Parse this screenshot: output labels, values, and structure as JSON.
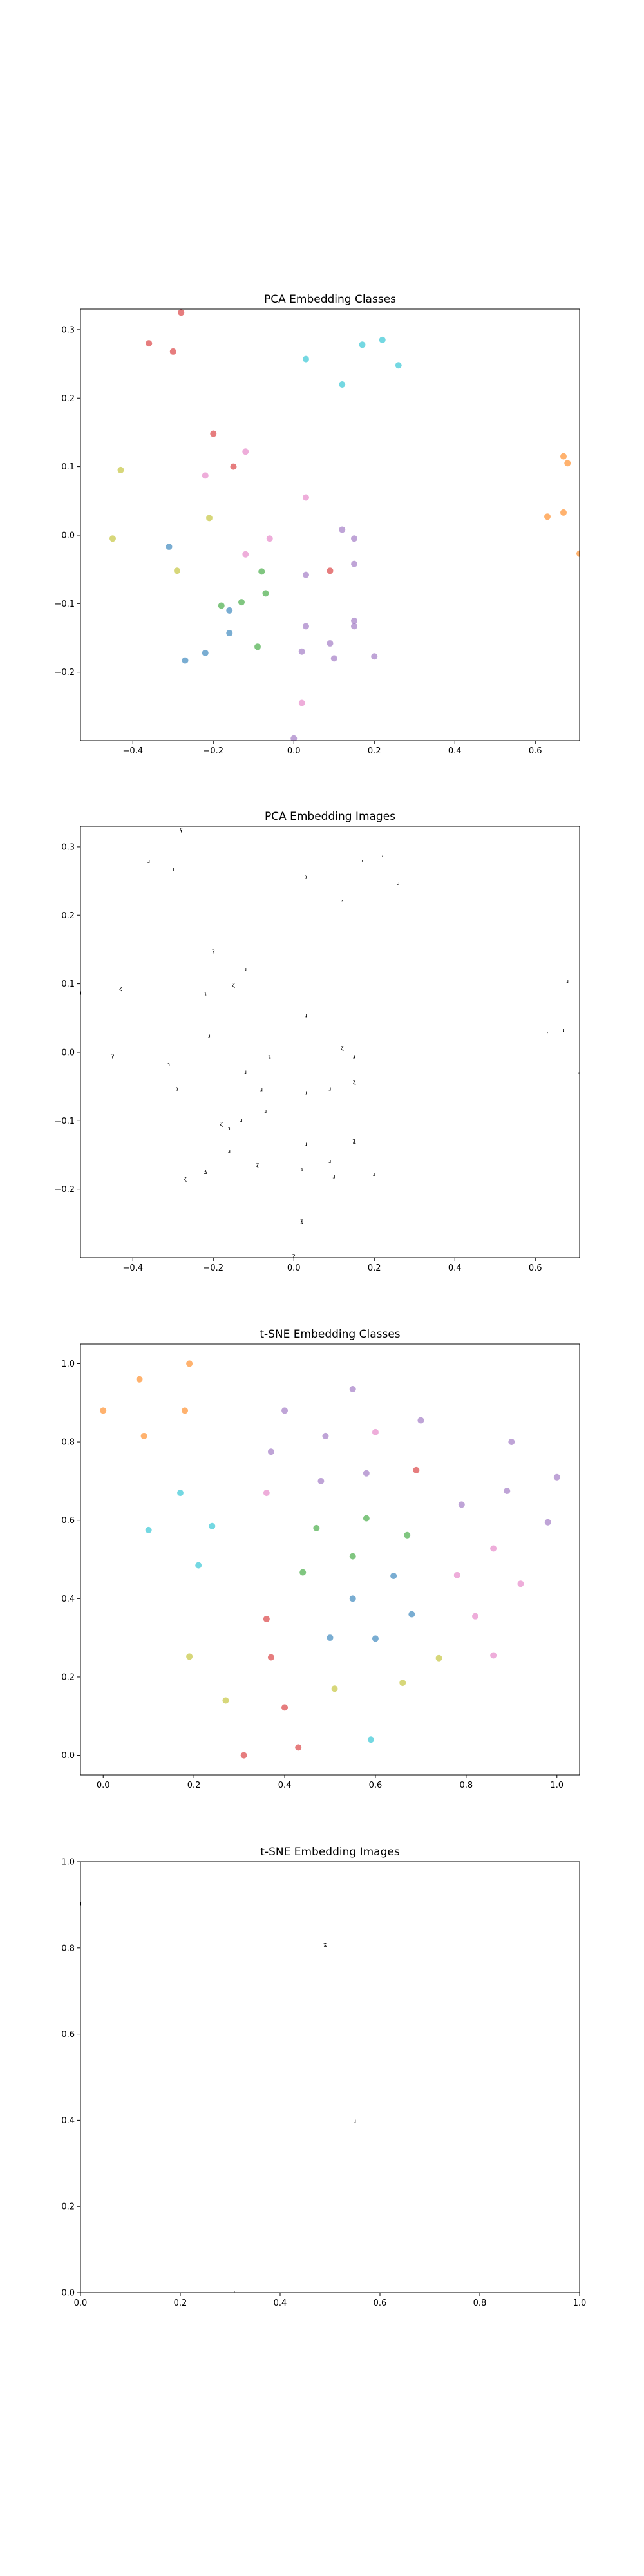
{
  "chart_data": [
    {
      "type": "scatter",
      "title": "PCA Embedding Classes",
      "xlabel": "",
      "ylabel": "",
      "xlim": [
        -0.53,
        0.71
      ],
      "ylim": [
        -0.3,
        0.33
      ],
      "x_ticks": [
        -0.4,
        -0.2,
        0.0,
        0.2,
        0.4,
        0.6
      ],
      "x_tick_labels": [
        "−0.4",
        "−0.2",
        "0.0",
        "0.2",
        "0.4",
        "0.6"
      ],
      "y_ticks": [
        -0.2,
        -0.1,
        0.0,
        0.1,
        0.2,
        0.3
      ],
      "y_tick_labels": [
        "−0.2",
        "−0.1",
        "0.0",
        "0.1",
        "0.2",
        "0.3"
      ],
      "grid": false,
      "marker_alpha": 0.6,
      "points": [
        {
          "x": -0.28,
          "y": 0.325,
          "color": "#d62728"
        },
        {
          "x": -0.36,
          "y": 0.28,
          "color": "#d62728"
        },
        {
          "x": -0.3,
          "y": 0.268,
          "color": "#d62728"
        },
        {
          "x": -0.2,
          "y": 0.148,
          "color": "#d62728"
        },
        {
          "x": -0.15,
          "y": 0.1,
          "color": "#d62728"
        },
        {
          "x": 0.03,
          "y": 0.257,
          "color": "#17becf"
        },
        {
          "x": 0.17,
          "y": 0.278,
          "color": "#17becf"
        },
        {
          "x": 0.22,
          "y": 0.285,
          "color": "#17becf"
        },
        {
          "x": 0.26,
          "y": 0.248,
          "color": "#17becf"
        },
        {
          "x": 0.12,
          "y": 0.22,
          "color": "#17becf"
        },
        {
          "x": 0.67,
          "y": 0.115,
          "color": "#ff7f0e"
        },
        {
          "x": 0.68,
          "y": 0.105,
          "color": "#ff7f0e"
        },
        {
          "x": 0.63,
          "y": 0.027,
          "color": "#ff7f0e"
        },
        {
          "x": 0.67,
          "y": 0.033,
          "color": "#ff7f0e"
        },
        {
          "x": 0.71,
          "y": -0.027,
          "color": "#ff7f0e"
        },
        {
          "x": -0.43,
          "y": 0.095,
          "color": "#bcbd22"
        },
        {
          "x": -0.45,
          "y": -0.005,
          "color": "#bcbd22"
        },
        {
          "x": -0.21,
          "y": 0.025,
          "color": "#bcbd22"
        },
        {
          "x": -0.29,
          "y": -0.052,
          "color": "#bcbd22"
        },
        {
          "x": -0.12,
          "y": 0.122,
          "color": "#e377c2"
        },
        {
          "x": -0.22,
          "y": 0.087,
          "color": "#e377c2"
        },
        {
          "x": 0.03,
          "y": 0.055,
          "color": "#e377c2"
        },
        {
          "x": -0.06,
          "y": -0.005,
          "color": "#e377c2"
        },
        {
          "x": -0.12,
          "y": -0.028,
          "color": "#e377c2"
        },
        {
          "x": 0.12,
          "y": 0.008,
          "color": "#9467bd"
        },
        {
          "x": 0.15,
          "y": -0.005,
          "color": "#9467bd"
        },
        {
          "x": 0.15,
          "y": -0.042,
          "color": "#9467bd"
        },
        {
          "x": 0.03,
          "y": -0.058,
          "color": "#9467bd"
        },
        {
          "x": 0.09,
          "y": -0.052,
          "color": "#d62728"
        },
        {
          "x": -0.31,
          "y": -0.017,
          "color": "#1f77b4"
        },
        {
          "x": -0.16,
          "y": -0.11,
          "color": "#1f77b4"
        },
        {
          "x": -0.16,
          "y": -0.143,
          "color": "#1f77b4"
        },
        {
          "x": -0.22,
          "y": -0.172,
          "color": "#1f77b4"
        },
        {
          "x": -0.27,
          "y": -0.183,
          "color": "#1f77b4"
        },
        {
          "x": -0.08,
          "y": -0.053,
          "color": "#2ca02c"
        },
        {
          "x": -0.07,
          "y": -0.085,
          "color": "#2ca02c"
        },
        {
          "x": -0.18,
          "y": -0.103,
          "color": "#2ca02c"
        },
        {
          "x": -0.13,
          "y": -0.098,
          "color": "#2ca02c"
        },
        {
          "x": -0.09,
          "y": -0.163,
          "color": "#2ca02c"
        },
        {
          "x": 0.03,
          "y": -0.133,
          "color": "#9467bd"
        },
        {
          "x": 0.15,
          "y": -0.125,
          "color": "#9467bd"
        },
        {
          "x": 0.15,
          "y": -0.133,
          "color": "#9467bd"
        },
        {
          "x": 0.09,
          "y": -0.158,
          "color": "#9467bd"
        },
        {
          "x": 0.02,
          "y": -0.17,
          "color": "#9467bd"
        },
        {
          "x": 0.1,
          "y": -0.18,
          "color": "#9467bd"
        },
        {
          "x": 0.2,
          "y": -0.177,
          "color": "#9467bd"
        },
        {
          "x": 0.02,
          "y": -0.245,
          "color": "#e377c2"
        },
        {
          "x": 0.0,
          "y": -0.297,
          "color": "#9467bd"
        }
      ]
    },
    {
      "type": "scatter",
      "title": "PCA Embedding Images",
      "xlabel": "",
      "ylabel": "",
      "xlim": [
        -0.53,
        0.71
      ],
      "ylim": [
        -0.3,
        0.33
      ],
      "x_ticks": [
        -0.4,
        -0.2,
        0.0,
        0.2,
        0.4,
        0.6
      ],
      "x_tick_labels": [
        "−0.4",
        "−0.2",
        "0.0",
        "0.2",
        "0.4",
        "0.6"
      ],
      "y_ticks": [
        -0.2,
        -0.1,
        0.0,
        0.1,
        0.2,
        0.3
      ],
      "y_tick_labels": [
        "−0.2",
        "−0.1",
        "0.0",
        "0.1",
        "0.2",
        "0.3"
      ],
      "grid": false,
      "glyph_points": [
        {
          "x": -0.28,
          "y": 0.325,
          "glyph": "ʕ"
        },
        {
          "x": -0.36,
          "y": 0.28,
          "glyph": "ɹ"
        },
        {
          "x": -0.3,
          "y": 0.268,
          "glyph": "ɹ"
        },
        {
          "x": -0.2,
          "y": 0.148,
          "glyph": "ʔ"
        },
        {
          "x": -0.15,
          "y": 0.1,
          "glyph": "ɀ"
        },
        {
          "x": 0.03,
          "y": 0.257,
          "glyph": "ɿ"
        },
        {
          "x": 0.17,
          "y": 0.278,
          "glyph": "ʼ"
        },
        {
          "x": 0.22,
          "y": 0.285,
          "glyph": "ʼ"
        },
        {
          "x": 0.26,
          "y": 0.248,
          "glyph": "ɹ"
        },
        {
          "x": 0.12,
          "y": 0.22,
          "glyph": "ʼ"
        },
        {
          "x": -0.12,
          "y": 0.122,
          "glyph": "ɹ"
        },
        {
          "x": -0.22,
          "y": 0.087,
          "glyph": "ɿ"
        },
        {
          "x": 0.68,
          "y": 0.105,
          "glyph": "ɹ"
        },
        {
          "x": -0.43,
          "y": 0.095,
          "glyph": "ɀ"
        },
        {
          "x": -0.53,
          "y": 0.088,
          "glyph": "ɹ"
        },
        {
          "x": 0.03,
          "y": 0.055,
          "glyph": "ɹ"
        },
        {
          "x": 0.63,
          "y": 0.027,
          "glyph": "ʼ"
        },
        {
          "x": 0.67,
          "y": 0.033,
          "glyph": "ɹ"
        },
        {
          "x": -0.21,
          "y": 0.025,
          "glyph": "ɹ"
        },
        {
          "x": 0.12,
          "y": 0.008,
          "glyph": "ɀ"
        },
        {
          "x": 0.15,
          "y": -0.005,
          "glyph": "ɹ"
        },
        {
          "x": -0.06,
          "y": -0.005,
          "glyph": "ɿ"
        },
        {
          "x": -0.45,
          "y": -0.005,
          "glyph": "ʔ"
        },
        {
          "x": -0.31,
          "y": -0.017,
          "glyph": "ɿ"
        },
        {
          "x": -0.12,
          "y": -0.028,
          "glyph": "ɹ"
        },
        {
          "x": 0.71,
          "y": -0.027,
          "glyph": "ɹ"
        },
        {
          "x": 0.15,
          "y": -0.042,
          "glyph": "ɀ"
        },
        {
          "x": -0.29,
          "y": -0.052,
          "glyph": "ɿ"
        },
        {
          "x": -0.08,
          "y": -0.053,
          "glyph": "ɹ"
        },
        {
          "x": 0.03,
          "y": -0.058,
          "glyph": "ɹ"
        },
        {
          "x": 0.09,
          "y": -0.052,
          "glyph": "ɹ"
        },
        {
          "x": -0.07,
          "y": -0.085,
          "glyph": "ɹ"
        },
        {
          "x": -0.18,
          "y": -0.103,
          "glyph": "ɀ"
        },
        {
          "x": -0.13,
          "y": -0.098,
          "glyph": "ɹ"
        },
        {
          "x": -0.16,
          "y": -0.11,
          "glyph": "ɿ"
        },
        {
          "x": 0.03,
          "y": -0.133,
          "glyph": "ɹ"
        },
        {
          "x": 0.15,
          "y": -0.128,
          "glyph": "ʓ"
        },
        {
          "x": -0.16,
          "y": -0.143,
          "glyph": "ɹ"
        },
        {
          "x": 0.09,
          "y": -0.158,
          "glyph": "ɹ"
        },
        {
          "x": -0.09,
          "y": -0.163,
          "glyph": "ɀ"
        },
        {
          "x": 0.02,
          "y": -0.17,
          "glyph": "ɿ"
        },
        {
          "x": -0.22,
          "y": -0.172,
          "glyph": "ʓ"
        },
        {
          "x": 0.2,
          "y": -0.177,
          "glyph": "ɹ"
        },
        {
          "x": 0.1,
          "y": -0.18,
          "glyph": "ɹ"
        },
        {
          "x": -0.27,
          "y": -0.183,
          "glyph": "ɀ"
        },
        {
          "x": 0.02,
          "y": -0.245,
          "glyph": "ʓ"
        },
        {
          "x": 0.0,
          "y": -0.297,
          "glyph": "ʔ"
        }
      ]
    },
    {
      "type": "scatter",
      "title": "t-SNE Embedding Classes",
      "xlabel": "",
      "ylabel": "",
      "xlim": [
        -0.05,
        1.05
      ],
      "ylim": [
        -0.05,
        1.05
      ],
      "x_ticks": [
        0.0,
        0.2,
        0.4,
        0.6,
        0.8,
        1.0
      ],
      "x_tick_labels": [
        "0.0",
        "0.2",
        "0.4",
        "0.6",
        "0.8",
        "1.0"
      ],
      "y_ticks": [
        0.0,
        0.2,
        0.4,
        0.6,
        0.8,
        1.0
      ],
      "y_tick_labels": [
        "0.0",
        "0.2",
        "0.4",
        "0.6",
        "0.8",
        "1.0"
      ],
      "grid": false,
      "marker_alpha": 0.6,
      "points": [
        {
          "x": 0.19,
          "y": 1.0,
          "color": "#ff7f0e"
        },
        {
          "x": 0.08,
          "y": 0.96,
          "color": "#ff7f0e"
        },
        {
          "x": 0.0,
          "y": 0.88,
          "color": "#ff7f0e"
        },
        {
          "x": 0.18,
          "y": 0.88,
          "color": "#ff7f0e"
        },
        {
          "x": 0.09,
          "y": 0.815,
          "color": "#ff7f0e"
        },
        {
          "x": 0.55,
          "y": 0.935,
          "color": "#9467bd"
        },
        {
          "x": 0.4,
          "y": 0.88,
          "color": "#9467bd"
        },
        {
          "x": 0.6,
          "y": 0.825,
          "color": "#e377c2"
        },
        {
          "x": 0.7,
          "y": 0.855,
          "color": "#9467bd"
        },
        {
          "x": 0.49,
          "y": 0.815,
          "color": "#9467bd"
        },
        {
          "x": 0.37,
          "y": 0.775,
          "color": "#9467bd"
        },
        {
          "x": 0.48,
          "y": 0.7,
          "color": "#9467bd"
        },
        {
          "x": 0.58,
          "y": 0.72,
          "color": "#9467bd"
        },
        {
          "x": 0.69,
          "y": 0.728,
          "color": "#d62728"
        },
        {
          "x": 0.9,
          "y": 0.8,
          "color": "#9467bd"
        },
        {
          "x": 0.79,
          "y": 0.64,
          "color": "#9467bd"
        },
        {
          "x": 0.89,
          "y": 0.675,
          "color": "#9467bd"
        },
        {
          "x": 1.0,
          "y": 0.71,
          "color": "#9467bd"
        },
        {
          "x": 0.98,
          "y": 0.595,
          "color": "#9467bd"
        },
        {
          "x": 0.17,
          "y": 0.67,
          "color": "#17becf"
        },
        {
          "x": 0.1,
          "y": 0.575,
          "color": "#17becf"
        },
        {
          "x": 0.24,
          "y": 0.585,
          "color": "#17becf"
        },
        {
          "x": 0.21,
          "y": 0.485,
          "color": "#17becf"
        },
        {
          "x": 0.36,
          "y": 0.67,
          "color": "#e377c2"
        },
        {
          "x": 0.58,
          "y": 0.605,
          "color": "#2ca02c"
        },
        {
          "x": 0.47,
          "y": 0.58,
          "color": "#2ca02c"
        },
        {
          "x": 0.55,
          "y": 0.508,
          "color": "#2ca02c"
        },
        {
          "x": 0.67,
          "y": 0.562,
          "color": "#2ca02c"
        },
        {
          "x": 0.44,
          "y": 0.467,
          "color": "#2ca02c"
        },
        {
          "x": 0.64,
          "y": 0.458,
          "color": "#1f77b4"
        },
        {
          "x": 0.55,
          "y": 0.4,
          "color": "#1f77b4"
        },
        {
          "x": 0.68,
          "y": 0.36,
          "color": "#1f77b4"
        },
        {
          "x": 0.5,
          "y": 0.3,
          "color": "#1f77b4"
        },
        {
          "x": 0.6,
          "y": 0.298,
          "color": "#1f77b4"
        },
        {
          "x": 0.59,
          "y": 0.04,
          "color": "#17becf"
        },
        {
          "x": 0.86,
          "y": 0.528,
          "color": "#e377c2"
        },
        {
          "x": 0.78,
          "y": 0.46,
          "color": "#e377c2"
        },
        {
          "x": 0.92,
          "y": 0.438,
          "color": "#e377c2"
        },
        {
          "x": 0.82,
          "y": 0.355,
          "color": "#e377c2"
        },
        {
          "x": 0.86,
          "y": 0.255,
          "color": "#e377c2"
        },
        {
          "x": 0.36,
          "y": 0.348,
          "color": "#d62728"
        },
        {
          "x": 0.37,
          "y": 0.25,
          "color": "#d62728"
        },
        {
          "x": 0.4,
          "y": 0.122,
          "color": "#d62728"
        },
        {
          "x": 0.43,
          "y": 0.02,
          "color": "#d62728"
        },
        {
          "x": 0.31,
          "y": 0.0,
          "color": "#d62728"
        },
        {
          "x": 0.19,
          "y": 0.252,
          "color": "#bcbd22"
        },
        {
          "x": 0.27,
          "y": 0.14,
          "color": "#bcbd22"
        },
        {
          "x": 0.51,
          "y": 0.17,
          "color": "#bcbd22"
        },
        {
          "x": 0.66,
          "y": 0.185,
          "color": "#bcbd22"
        },
        {
          "x": 0.74,
          "y": 0.248,
          "color": "#bcbd22"
        }
      ]
    },
    {
      "type": "scatter",
      "title": "t-SNE Embedding Images",
      "xlabel": "",
      "ylabel": "",
      "xlim": [
        0.0,
        1.0
      ],
      "ylim": [
        0.0,
        1.0
      ],
      "x_ticks": [
        0.0,
        0.2,
        0.4,
        0.6,
        0.8,
        1.0
      ],
      "x_tick_labels": [
        "0.0",
        "0.2",
        "0.4",
        "0.6",
        "0.8",
        "1.0"
      ],
      "y_ticks": [
        0.0,
        0.2,
        0.4,
        0.6,
        0.8,
        1.0
      ],
      "y_tick_labels": [
        "0.0",
        "0.2",
        "0.4",
        "0.6",
        "0.8",
        "1.0"
      ],
      "grid": false,
      "glyph_points": [
        {
          "x": 0.0,
          "y": 0.905,
          "glyph": "ɹ"
        },
        {
          "x": 0.49,
          "y": 0.81,
          "glyph": "ʓ"
        },
        {
          "x": 0.55,
          "y": 0.4,
          "glyph": "ɹ"
        },
        {
          "x": 0.31,
          "y": 0.0,
          "glyph": "ʕ"
        }
      ]
    }
  ]
}
